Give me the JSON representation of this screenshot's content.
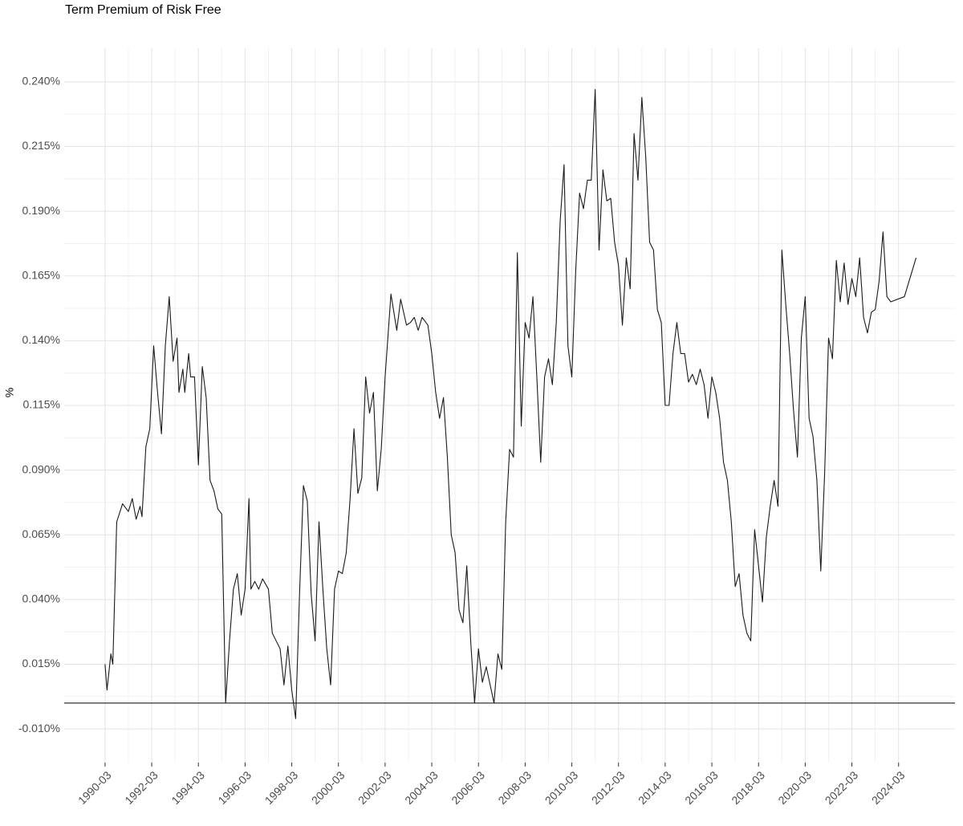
{
  "chart_data": {
    "type": "line",
    "title": "Term Premium of Risk Free",
    "y_label": "%",
    "x": [
      "1990-03",
      "1990-04",
      "1990-06",
      "1990-07",
      "1990-09",
      "1990-12",
      "1991-03",
      "1991-05",
      "1991-07",
      "1991-09",
      "1991-10",
      "1991-12",
      "1992-02",
      "1992-04",
      "1992-06",
      "1992-08",
      "1992-10",
      "1992-12",
      "1993-02",
      "1993-04",
      "1993-05",
      "1993-07",
      "1993-08",
      "1993-10",
      "1993-11",
      "1994-01",
      "1994-03",
      "1994-05",
      "1994-07",
      "1994-09",
      "1994-11",
      "1995-01",
      "1995-03",
      "1995-05",
      "1995-07",
      "1995-09",
      "1995-11",
      "1996-01",
      "1996-03",
      "1996-05",
      "1996-06",
      "1996-08",
      "1996-10",
      "1996-12",
      "1997-03",
      "1997-05",
      "1997-07",
      "1997-09",
      "1997-11",
      "1998-01",
      "1998-03",
      "1998-05",
      "1998-07",
      "1998-09",
      "1998-11",
      "1999-01",
      "1999-03",
      "1999-05",
      "1999-07",
      "1999-09",
      "1999-11",
      "2000-01",
      "2000-03",
      "2000-05",
      "2000-07",
      "2000-09",
      "2000-11",
      "2001-01",
      "2001-03",
      "2001-05",
      "2001-07",
      "2001-09",
      "2001-11",
      "2002-01",
      "2002-03",
      "2002-06",
      "2002-09",
      "2002-11",
      "2003-02",
      "2003-04",
      "2003-06",
      "2003-08",
      "2003-10",
      "2004-01",
      "2004-03",
      "2004-05",
      "2004-07",
      "2004-09",
      "2004-11",
      "2005-01",
      "2005-03",
      "2005-05",
      "2005-07",
      "2005-09",
      "2005-11",
      "2006-01",
      "2006-03",
      "2006-05",
      "2006-07",
      "2006-09",
      "2006-11",
      "2007-01",
      "2007-03",
      "2007-05",
      "2007-07",
      "2007-09",
      "2007-11",
      "2008-01",
      "2008-03",
      "2008-05",
      "2008-07",
      "2008-09",
      "2008-11",
      "2009-01",
      "2009-03",
      "2009-05",
      "2009-07",
      "2009-09",
      "2009-11",
      "2010-01",
      "2010-03",
      "2010-05",
      "2010-07",
      "2010-09",
      "2010-11",
      "2011-01",
      "2011-03",
      "2011-05",
      "2011-07",
      "2011-09",
      "2011-11",
      "2012-01",
      "2012-03",
      "2012-05",
      "2012-07",
      "2012-09",
      "2012-11",
      "2013-01",
      "2013-03",
      "2013-05",
      "2013-07",
      "2013-09",
      "2013-11",
      "2014-01",
      "2014-03",
      "2014-05",
      "2014-07",
      "2014-09",
      "2014-11",
      "2015-01",
      "2015-03",
      "2015-05",
      "2015-07",
      "2015-09",
      "2015-11",
      "2016-01",
      "2016-03",
      "2016-05",
      "2016-07",
      "2016-09",
      "2016-11",
      "2017-01",
      "2017-03",
      "2017-05",
      "2017-07",
      "2017-09",
      "2017-11",
      "2018-01",
      "2018-03",
      "2018-05",
      "2018-07",
      "2018-09",
      "2018-11",
      "2019-01",
      "2019-03",
      "2019-05",
      "2019-07",
      "2019-09",
      "2019-11",
      "2020-01",
      "2020-03",
      "2020-05",
      "2020-07",
      "2020-09",
      "2020-11",
      "2021-01",
      "2021-03",
      "2021-05",
      "2021-07",
      "2021-09",
      "2021-11",
      "2022-01",
      "2022-03",
      "2022-05",
      "2022-07",
      "2022-09",
      "2022-11",
      "2023-01",
      "2023-03",
      "2023-05",
      "2023-07",
      "2023-09",
      "2023-11",
      "2024-06",
      "2024-12"
    ],
    "series": [
      {
        "name": "Term Premium",
        "color": "#1a1a1a",
        "values": [
          0.015,
          0.005,
          0.019,
          0.015,
          0.07,
          0.077,
          0.074,
          0.079,
          0.071,
          0.076,
          0.072,
          0.099,
          0.106,
          0.138,
          0.12,
          0.104,
          0.138,
          0.157,
          0.132,
          0.141,
          0.12,
          0.129,
          0.12,
          0.135,
          0.126,
          0.126,
          0.092,
          0.13,
          0.118,
          0.086,
          0.082,
          0.075,
          0.073,
          0.0,
          0.024,
          0.044,
          0.05,
          0.034,
          0.044,
          0.079,
          0.044,
          0.047,
          0.044,
          0.048,
          0.044,
          0.027,
          0.024,
          0.021,
          0.007,
          0.022,
          0.005,
          -0.006,
          0.042,
          0.084,
          0.078,
          0.042,
          0.024,
          0.07,
          0.044,
          0.021,
          0.007,
          0.044,
          0.051,
          0.05,
          0.058,
          0.079,
          0.106,
          0.081,
          0.087,
          0.126,
          0.112,
          0.12,
          0.082,
          0.098,
          0.126,
          0.158,
          0.144,
          0.156,
          0.146,
          0.147,
          0.149,
          0.144,
          0.149,
          0.146,
          0.135,
          0.12,
          0.11,
          0.118,
          0.095,
          0.065,
          0.058,
          0.036,
          0.031,
          0.053,
          0.024,
          0.0,
          0.021,
          0.008,
          0.014,
          0.007,
          0.0,
          0.019,
          0.013,
          0.07,
          0.098,
          0.095,
          0.174,
          0.107,
          0.147,
          0.141,
          0.157,
          0.126,
          0.093,
          0.126,
          0.133,
          0.123,
          0.147,
          0.186,
          0.208,
          0.138,
          0.126,
          0.167,
          0.197,
          0.191,
          0.202,
          0.202,
          0.237,
          0.175,
          0.206,
          0.194,
          0.195,
          0.178,
          0.169,
          0.146,
          0.172,
          0.16,
          0.22,
          0.202,
          0.234,
          0.211,
          0.178,
          0.175,
          0.152,
          0.147,
          0.115,
          0.115,
          0.135,
          0.147,
          0.135,
          0.135,
          0.124,
          0.127,
          0.123,
          0.129,
          0.123,
          0.11,
          0.126,
          0.12,
          0.11,
          0.093,
          0.086,
          0.07,
          0.045,
          0.05,
          0.034,
          0.027,
          0.024,
          0.067,
          0.053,
          0.039,
          0.064,
          0.076,
          0.086,
          0.076,
          0.175,
          0.154,
          0.135,
          0.113,
          0.095,
          0.141,
          0.157,
          0.11,
          0.103,
          0.086,
          0.051,
          0.089,
          0.141,
          0.133,
          0.171,
          0.155,
          0.17,
          0.154,
          0.164,
          0.157,
          0.172,
          0.149,
          0.143,
          0.151,
          0.152,
          0.163,
          0.182,
          0.157,
          0.155,
          0.157,
          0.172
        ]
      }
    ],
    "xlim": [
      "1988-06",
      "2026-08"
    ],
    "xticks": [
      "1990-03",
      "1992-03",
      "1994-03",
      "1996-03",
      "1998-03",
      "2000-03",
      "2002-03",
      "2004-03",
      "2006-03",
      "2008-03",
      "2010-03",
      "2012-03",
      "2014-03",
      "2016-03",
      "2018-03",
      "2020-03",
      "2022-03",
      "2024-03"
    ],
    "ylim": [
      -0.023,
      0.253
    ],
    "yticks": [
      {
        "value": -0.01,
        "label": "-0.010%"
      },
      {
        "value": 0.015,
        "label": "0.015%"
      },
      {
        "value": 0.04,
        "label": "0.040%"
      },
      {
        "value": 0.065,
        "label": "0.065%"
      },
      {
        "value": 0.09,
        "label": "0.090%"
      },
      {
        "value": 0.115,
        "label": "0.115%"
      },
      {
        "value": 0.14,
        "label": "0.140%"
      },
      {
        "value": 0.165,
        "label": "0.165%"
      },
      {
        "value": 0.19,
        "label": "0.190%"
      },
      {
        "value": 0.215,
        "label": "0.215%"
      },
      {
        "value": 0.24,
        "label": "0.240%"
      }
    ],
    "hline": 0,
    "grid": true
  }
}
